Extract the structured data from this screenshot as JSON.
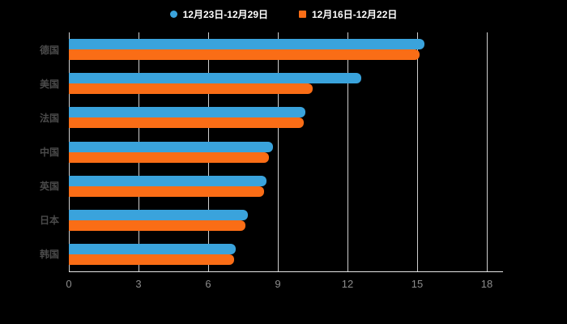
{
  "legend": {
    "items": [
      {
        "label": "12月23日-12月29日",
        "color": "#3aa3dc",
        "marker": "circle"
      },
      {
        "label": "12月16日-12月22日",
        "color": "#fa6d16",
        "marker": "square"
      }
    ]
  },
  "chart_data": {
    "type": "bar",
    "orientation": "horizontal",
    "title": "",
    "xlabel": "",
    "ylabel": "",
    "categories": [
      "德国",
      "美国",
      "法国",
      "中国",
      "英国",
      "日本",
      "韩国"
    ],
    "series": [
      {
        "name": "12月23日-12月29日",
        "color": "#3aa3dc",
        "values": [
          15.3,
          12.6,
          10.2,
          8.8,
          8.5,
          7.7,
          7.2
        ]
      },
      {
        "name": "12月16日-12月22日",
        "color": "#fa6d16",
        "values": [
          15.1,
          10.5,
          10.1,
          8.6,
          8.4,
          7.6,
          7.1
        ]
      }
    ],
    "xlim": [
      0,
      18
    ],
    "xticks": [
      0,
      3,
      6,
      9,
      12,
      15,
      18
    ],
    "grid": true,
    "legend_position": "top"
  },
  "colors": {
    "background": "#000000",
    "grid_line": "#e6e6e6",
    "axis_line": "#e6e6e6",
    "tick_label": "#8c8c8c",
    "category_label": "#4a4a4a",
    "legend_text": "#ffffff"
  }
}
